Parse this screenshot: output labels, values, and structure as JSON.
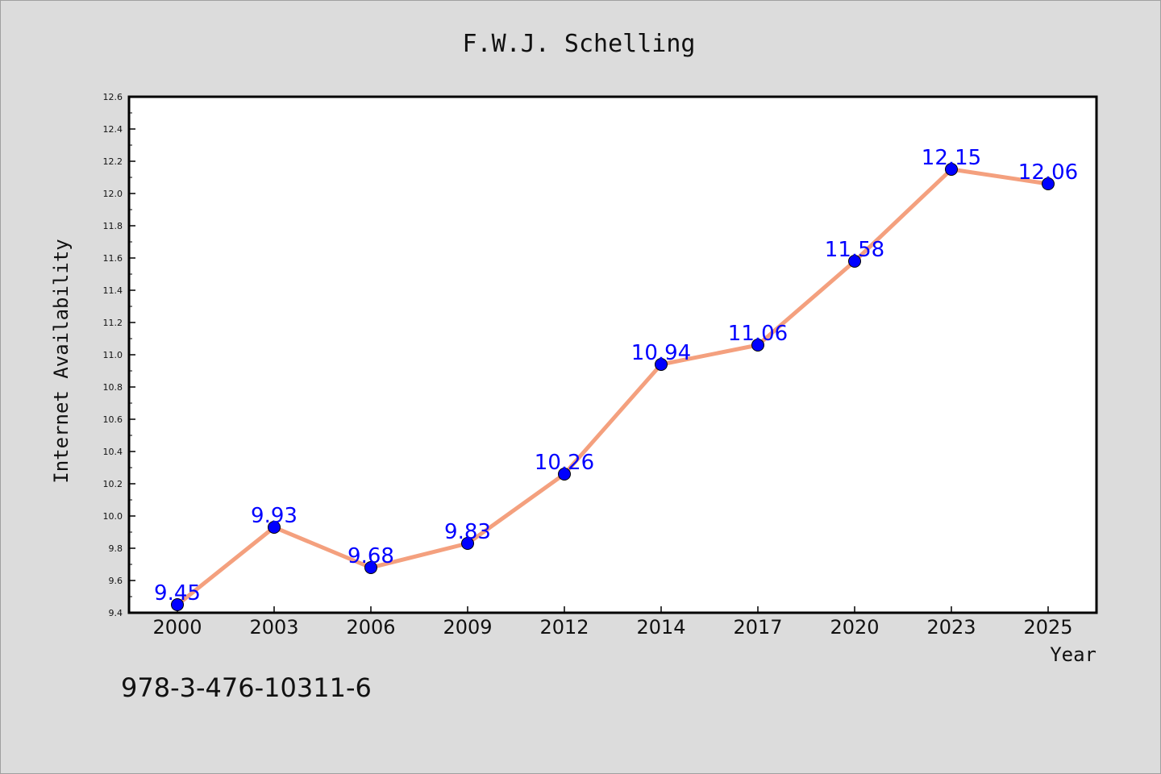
{
  "chart_data": {
    "type": "line",
    "title": "F.W.J. Schelling",
    "xlabel": "Year",
    "ylabel": "Internet Availability",
    "categories": [
      "2000",
      "2003",
      "2006",
      "2009",
      "2012",
      "2014",
      "2017",
      "2020",
      "2023",
      "2025"
    ],
    "series": [
      {
        "values": [
          9.45,
          9.93,
          9.68,
          9.83,
          10.26,
          10.94,
          11.06,
          11.58,
          12.15,
          12.06
        ]
      }
    ],
    "data_labels": [
      "9.45",
      "9.93",
      "9.68",
      "9.83",
      "10.26",
      "10.94",
      "11.06",
      "11.58",
      "12.15",
      "12.06"
    ],
    "ylim": [
      9.4,
      12.6
    ],
    "yticks": [
      "9.4",
      "9.6",
      "9.8",
      "10.0",
      "10.2",
      "10.4",
      "10.6",
      "10.8",
      "11.0",
      "11.2",
      "11.4",
      "11.6",
      "11.8",
      "12.0",
      "12.2",
      "12.4",
      "12.6"
    ],
    "grid": false,
    "legend": "none",
    "line_color": "#f4a07e",
    "marker_color": "#0000ff",
    "label_color": "#0000ff",
    "plot_background": "#ffffff",
    "page_background": "#dcdcdc"
  },
  "footnote": "978-3-476-10311-6"
}
